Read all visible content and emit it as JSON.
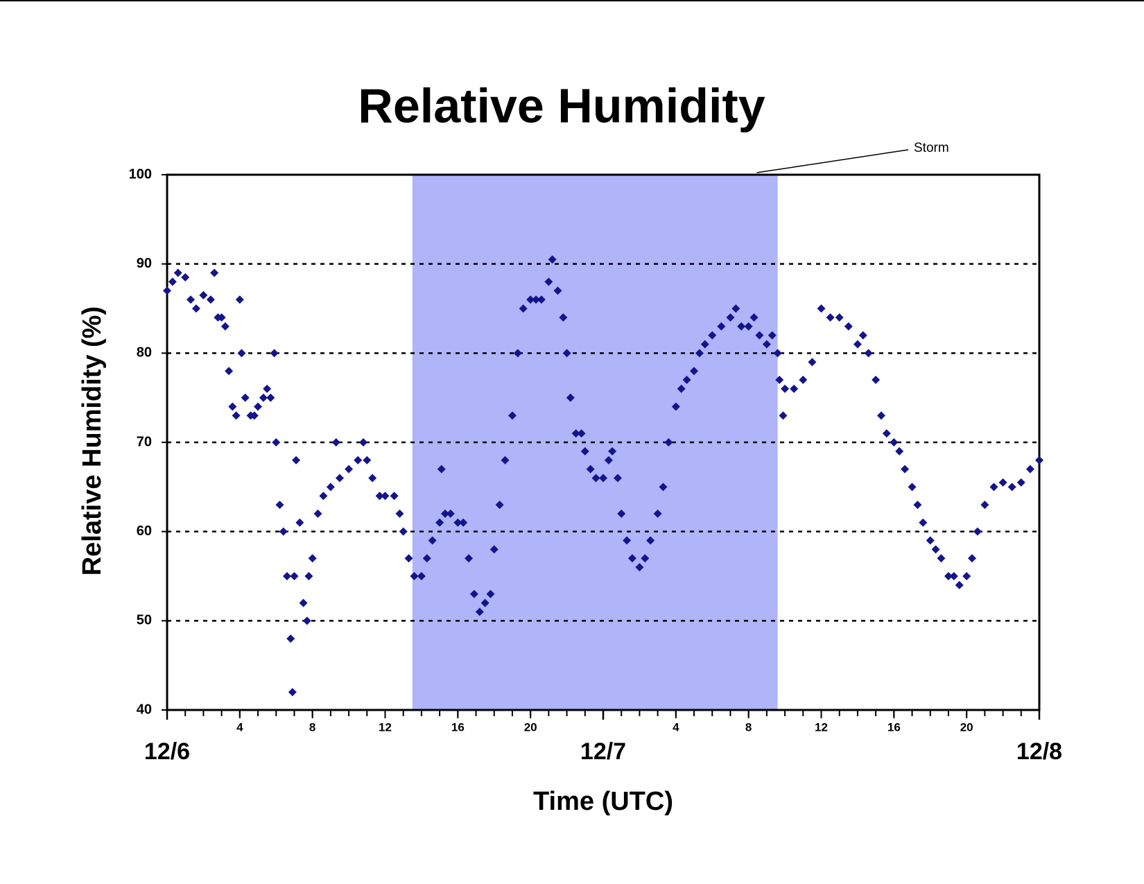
{
  "chart_data": {
    "type": "scatter",
    "title": "Relative Humidity",
    "xlabel": "Time (UTC)",
    "ylabel": "Relative Humidity (%)",
    "color": "#14148c",
    "marker": "diamond",
    "shaded_region": {
      "label": "Storm",
      "x": [
        13.5,
        33.6
      ],
      "color": "#b0b4f8"
    },
    "xlim": [
      0,
      48
    ],
    "ylim": [
      40,
      100
    ],
    "yticks": [
      40,
      50,
      60,
      70,
      80,
      90,
      100
    ],
    "grid": true,
    "xticks": [
      4,
      8,
      12,
      16,
      20,
      {
        "value": 28,
        "label": "4"
      },
      {
        "value": 32,
        "label": "8"
      },
      {
        "value": 36,
        "label": "12"
      },
      {
        "value": 40,
        "label": "16"
      },
      {
        "value": 44,
        "label": "20"
      }
    ],
    "xdate_ticks": [
      {
        "value": 0,
        "label": "12/6"
      },
      {
        "value": 24,
        "label": "12/7"
      },
      {
        "value": 48,
        "label": "12/8"
      }
    ],
    "xminorticks": [
      0,
      1,
      2,
      3,
      4,
      5,
      6,
      7,
      8,
      9,
      10,
      11,
      12,
      13,
      14,
      15,
      16,
      17,
      18,
      19,
      20,
      21,
      22,
      23,
      24,
      25,
      26,
      27,
      28,
      29,
      30,
      31,
      32,
      33,
      34,
      35,
      36,
      37,
      38,
      39,
      40,
      41,
      42,
      43,
      44,
      45,
      46,
      47,
      48
    ],
    "x": [
      0,
      0.3,
      0.6,
      1,
      1.3,
      1.6,
      2,
      2.4,
      2.6,
      2.8,
      3,
      3.2,
      3.4,
      3.6,
      3.8,
      4,
      4.1,
      4.3,
      4.6,
      4.8,
      5,
      5.3,
      5.5,
      5.7,
      5.9,
      6,
      6.2,
      6.4,
      6.6,
      6.8,
      6.9,
      7,
      7.1,
      7.3,
      7.5,
      7.7,
      7.8,
      8,
      8.3,
      8.6,
      9,
      9.3,
      9.5,
      10,
      10.5,
      10.8,
      11,
      11.3,
      11.7,
      12,
      12.5,
      12.8,
      13,
      13.3,
      13.6,
      14,
      14.3,
      14.6,
      15,
      15.1,
      15.3,
      15.6,
      16,
      16.3,
      16.6,
      16.9,
      17.2,
      17.5,
      17.8,
      18,
      18.3,
      18.6,
      19,
      19.3,
      19.6,
      20,
      20.3,
      20.6,
      21,
      21.2,
      21.5,
      21.8,
      22,
      22.2,
      22.5,
      22.8,
      23,
      23.3,
      23.6,
      24,
      24.3,
      24.5,
      24.8,
      25,
      25.3,
      25.6,
      26,
      26.3,
      26.6,
      27,
      27.3,
      27.6,
      28,
      28.3,
      28.6,
      29,
      29.3,
      29.6,
      30,
      30.5,
      31,
      31.3,
      31.6,
      32,
      32.3,
      32.6,
      33,
      33.3,
      33.6,
      33.7,
      33.9,
      34,
      34.5,
      35,
      35.5,
      36,
      36.5,
      37,
      37.5,
      38,
      38.3,
      38.6,
      39,
      39.3,
      39.6,
      40,
      40.3,
      40.6,
      41,
      41.3,
      41.6,
      42,
      42.3,
      42.6,
      43,
      43.3,
      43.6,
      44,
      44.3,
      44.6,
      45,
      45.5,
      46,
      46.5,
      47,
      47.5,
      48
    ],
    "values": [
      87,
      88,
      89,
      88.5,
      86,
      85,
      86.5,
      86,
      89,
      84,
      84,
      83,
      78,
      74,
      73,
      86,
      80,
      75,
      73,
      73,
      74,
      75,
      76,
      75,
      80,
      70,
      63,
      60,
      55,
      48,
      42,
      55,
      68,
      61,
      52,
      50,
      55,
      57,
      62,
      64,
      65,
      70,
      66,
      67,
      68,
      70,
      68,
      66,
      64,
      64,
      64,
      62,
      60,
      57,
      55,
      55,
      57,
      59,
      61,
      67,
      62,
      62,
      61,
      61,
      57,
      53,
      51,
      52,
      53,
      58,
      63,
      68,
      73,
      80,
      85,
      86,
      86,
      86,
      88,
      90.5,
      87,
      84,
      80,
      75,
      71,
      71,
      69,
      67,
      66,
      66,
      68,
      69,
      66,
      62,
      59,
      57,
      56,
      57,
      59,
      62,
      65,
      70,
      74,
      76,
      77,
      78,
      80,
      81,
      82,
      83,
      84,
      85,
      83,
      83,
      84,
      82,
      81,
      82,
      80,
      77,
      73,
      76,
      76,
      77,
      79,
      85,
      84,
      84,
      83,
      81,
      82,
      80,
      77,
      73,
      71,
      70,
      69,
      67,
      65,
      63,
      61,
      59,
      58,
      57,
      55,
      55,
      54,
      55,
      57,
      60,
      63,
      65,
      65.5,
      65,
      65.5,
      67,
      68
    ]
  }
}
